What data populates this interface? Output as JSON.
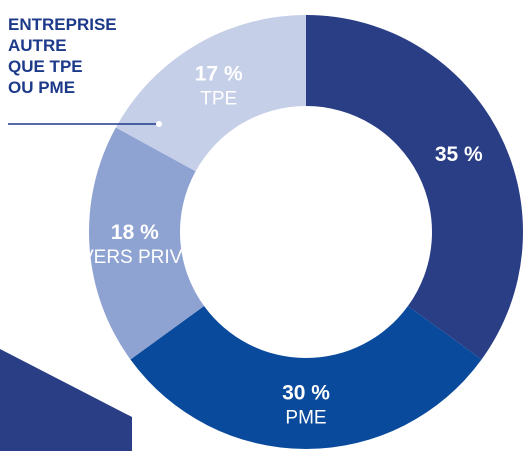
{
  "chart_data": {
    "type": "pie",
    "donut": true,
    "start_angle_deg": 270,
    "direction": "clockwise",
    "slices": [
      {
        "label": "",
        "value": 35,
        "value_text": "35 %",
        "color": "#2a3e86"
      },
      {
        "label": "PME",
        "value": 30,
        "value_text": "30 %",
        "color": "#0a4a9c"
      },
      {
        "label": "DIVERS PRIVÉS",
        "value": 18,
        "value_text": "18 %",
        "color": "#8ea3d2"
      },
      {
        "label": "TPE",
        "value": 17,
        "value_text": "17 %",
        "color": "#c6cfe8"
      }
    ],
    "callout": {
      "slice_index": 0,
      "lines": [
        "ENTREPRISE",
        "AUTRE",
        "QUE TPE",
        "OU PME"
      ]
    },
    "background_color": "#ffffff",
    "decor_color": "#2a3e86"
  }
}
